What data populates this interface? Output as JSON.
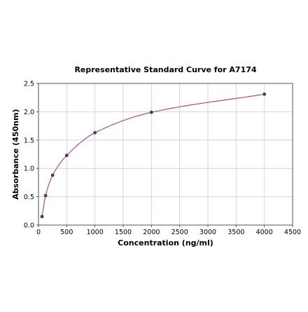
{
  "chart_data": {
    "type": "scatter",
    "title": "Representative Standard Curve for A7174",
    "xlabel": "Concentration (ng/ml)",
    "ylabel": "Absorbance (450nm)",
    "xlim": [
      0,
      4500
    ],
    "ylim": [
      0,
      2.5
    ],
    "xticks": [
      "0",
      "500",
      "1000",
      "1500",
      "2000",
      "2500",
      "3000",
      "3500",
      "4000",
      "4500"
    ],
    "yticks": [
      "0.0",
      "0.5",
      "1.0",
      "1.5",
      "2.0",
      "2.5"
    ],
    "grid": true,
    "series": [
      {
        "x": [
          62.5,
          125,
          250,
          500,
          1000,
          2000,
          4000
        ],
        "y": [
          0.15,
          0.52,
          0.88,
          1.23,
          1.63,
          1.99,
          2.31
        ],
        "marker_color": "#3c3c78"
      }
    ],
    "fit_line": {
      "color": "#b0506e"
    }
  }
}
